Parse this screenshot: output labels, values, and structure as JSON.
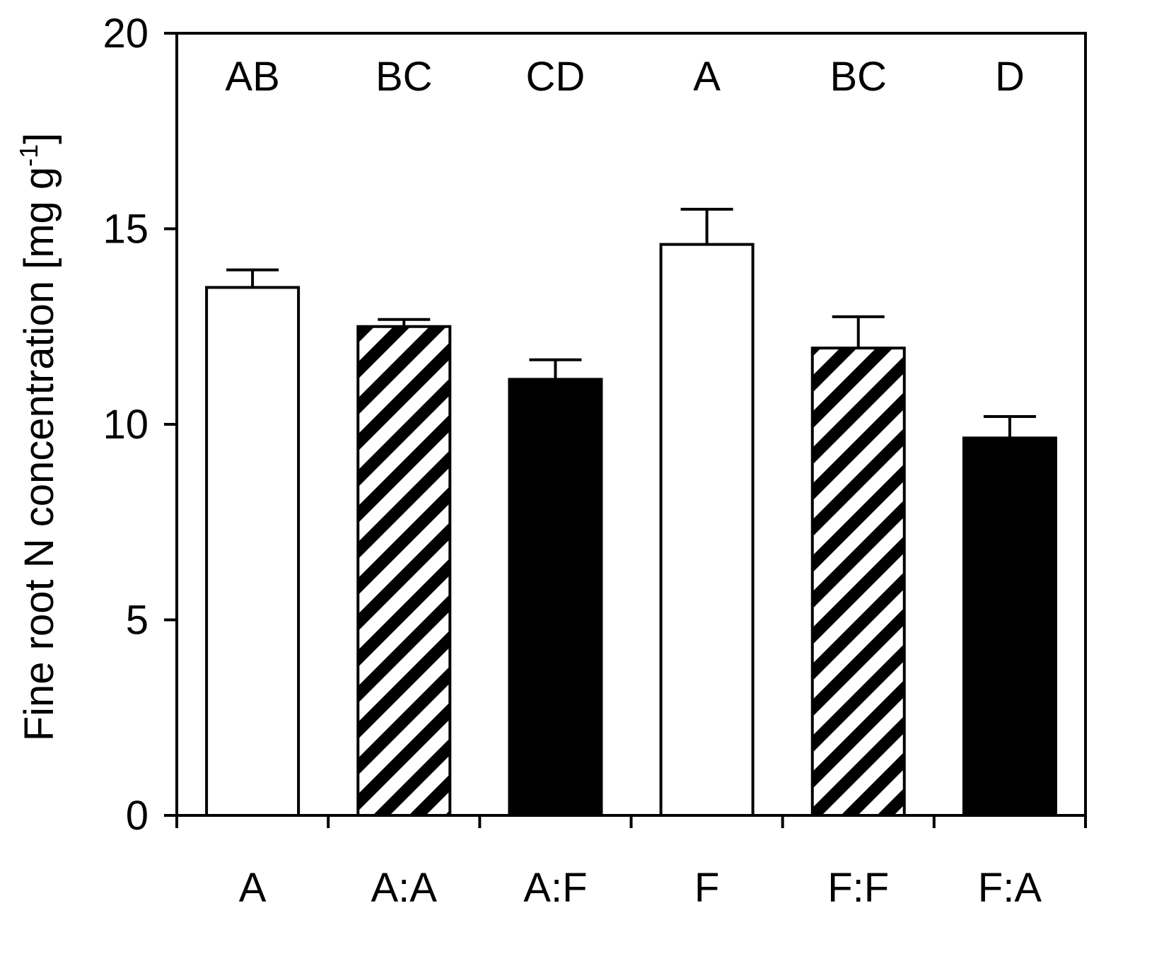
{
  "chart_data": {
    "type": "bar",
    "title": "",
    "xlabel": "",
    "ylabel": {
      "main": "Fine root N concentration [mg g",
      "superscript": "-1",
      "close": "]"
    },
    "ylim": [
      0,
      20
    ],
    "yticks": [
      "0",
      "5",
      "10",
      "15",
      "20"
    ],
    "grid": false,
    "legend": "none",
    "categories": [
      "A",
      "A:A",
      "A:F",
      "F",
      "F:F",
      "F:A"
    ],
    "values": [
      13.5,
      12.5,
      11.15,
      14.6,
      11.95,
      9.65
    ],
    "errors": [
      0.45,
      0.18,
      0.5,
      0.9,
      0.8,
      0.55
    ],
    "fills": [
      "white",
      "hatched",
      "black",
      "white",
      "hatched",
      "black"
    ],
    "significance_letters": [
      "AB",
      "BC",
      "CD",
      "A",
      "BC",
      "D"
    ]
  },
  "colors": {
    "ink": "#000000",
    "paper": "#ffffff"
  }
}
